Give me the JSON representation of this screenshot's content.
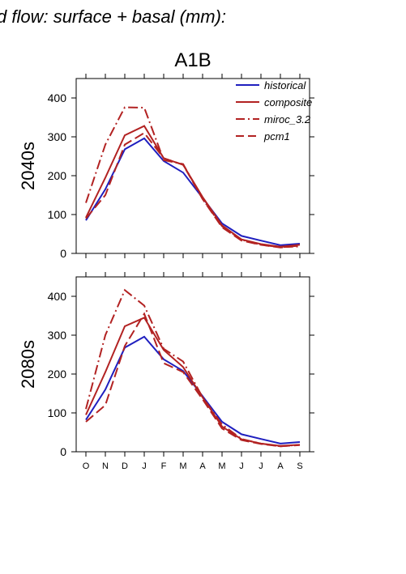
{
  "figure": {
    "header": "d flow: surface + basal (mm):",
    "scenario": "A1B"
  },
  "colors": {
    "historical": "#1f1fbf",
    "composite": "#b22222",
    "miroc_3.2": "#b22222",
    "pcm1": "#b22222"
  },
  "chart_data": [
    {
      "type": "line",
      "ylabel": "2040s",
      "title": "A1B",
      "categories": [
        "O",
        "N",
        "D",
        "J",
        "F",
        "M",
        "A",
        "M",
        "J",
        "J",
        "A",
        "S"
      ],
      "ylim": [
        0,
        450
      ],
      "yticks": [
        0,
        100,
        200,
        300,
        400
      ],
      "legend": "top-right",
      "series": [
        {
          "name": "historical",
          "style": "solid",
          "values": [
            85,
            165,
            268,
            296,
            238,
            208,
            143,
            77,
            45,
            33,
            21,
            25
          ]
        },
        {
          "name": "composite",
          "style": "solid",
          "values": [
            92,
            195,
            304,
            328,
            245,
            228,
            145,
            72,
            36,
            24,
            17,
            22
          ]
        },
        {
          "name": "miroc_3.2",
          "style": "dashdot",
          "values": [
            130,
            280,
            376,
            375,
            240,
            230,
            140,
            70,
            35,
            22,
            16,
            18
          ]
        },
        {
          "name": "pcm1",
          "style": "dashed",
          "values": [
            90,
            150,
            280,
            310,
            245,
            228,
            140,
            67,
            33,
            22,
            15,
            20
          ]
        }
      ]
    },
    {
      "type": "line",
      "ylabel": "2080s",
      "categories": [
        "O",
        "N",
        "D",
        "J",
        "F",
        "M",
        "A",
        "M",
        "J",
        "J",
        "A",
        "S"
      ],
      "ylim": [
        0,
        450
      ],
      "yticks": [
        0,
        100,
        200,
        300,
        400
      ],
      "series": [
        {
          "name": "historical",
          "style": "solid",
          "values": [
            82,
            160,
            268,
            296,
            238,
            208,
            143,
            77,
            45,
            33,
            21,
            25
          ]
        },
        {
          "name": "composite",
          "style": "solid",
          "values": [
            95,
            205,
            323,
            345,
            262,
            218,
            140,
            65,
            32,
            21,
            15,
            18
          ]
        },
        {
          "name": "miroc_3.2",
          "style": "dashdot",
          "values": [
            110,
            300,
            416,
            376,
            265,
            232,
            140,
            70,
            33,
            21,
            14,
            18
          ]
        },
        {
          "name": "pcm1",
          "style": "dashed",
          "values": [
            77,
            120,
            272,
            355,
            228,
            205,
            135,
            60,
            30,
            20,
            14,
            17
          ]
        }
      ]
    }
  ]
}
